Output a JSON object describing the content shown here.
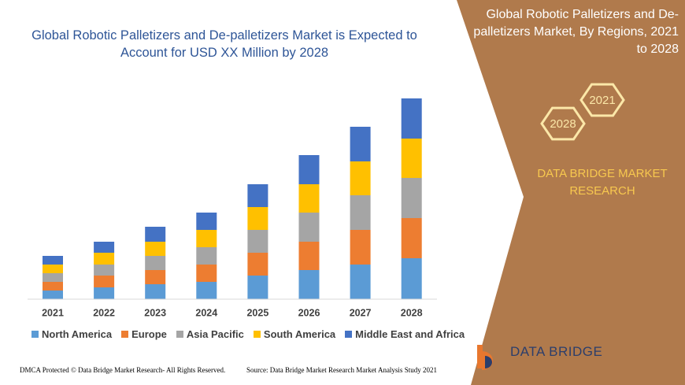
{
  "chart_data": {
    "type": "bar",
    "stacked": true,
    "title": "Global Robotic Palletizers and De-palletizers Market is Expected to Account for USD XX Million by 2028",
    "categories": [
      "2021",
      "2022",
      "2023",
      "2024",
      "2025",
      "2026",
      "2027",
      "2028"
    ],
    "series": [
      {
        "name": "North America",
        "color": "#5b9bd5",
        "values": [
          11,
          15,
          19,
          22,
          30,
          37,
          44,
          52
        ]
      },
      {
        "name": "Europe",
        "color": "#ed7d31",
        "values": [
          11,
          15,
          18,
          22,
          29,
          36,
          44,
          51
        ]
      },
      {
        "name": "Asia Pacific",
        "color": "#a5a5a5",
        "values": [
          11,
          14,
          18,
          22,
          29,
          37,
          44,
          51
        ]
      },
      {
        "name": "South America",
        "color": "#ffc000",
        "values": [
          11,
          15,
          18,
          22,
          29,
          36,
          43,
          50
        ]
      },
      {
        "name": "Middle East and Africa",
        "color": "#4472c4",
        "values": [
          11,
          14,
          19,
          22,
          29,
          37,
          44,
          51
        ]
      }
    ]
  },
  "side_panel": {
    "title": "Global Robotic Palletizers and De-palletizers Market, By Regions, 2021 to 2028",
    "hexagons": [
      "2021",
      "2028"
    ],
    "brand": "DATA BRIDGE MARKET RESEARCH"
  },
  "logo": {
    "name": "DATA BRIDGE"
  },
  "footer": {
    "dmca": "DMCA Protected © Data Bridge Market Research- All Rights Reserved.",
    "source": "Source: Data Bridge Market Research Market Analysis Study 2021"
  }
}
